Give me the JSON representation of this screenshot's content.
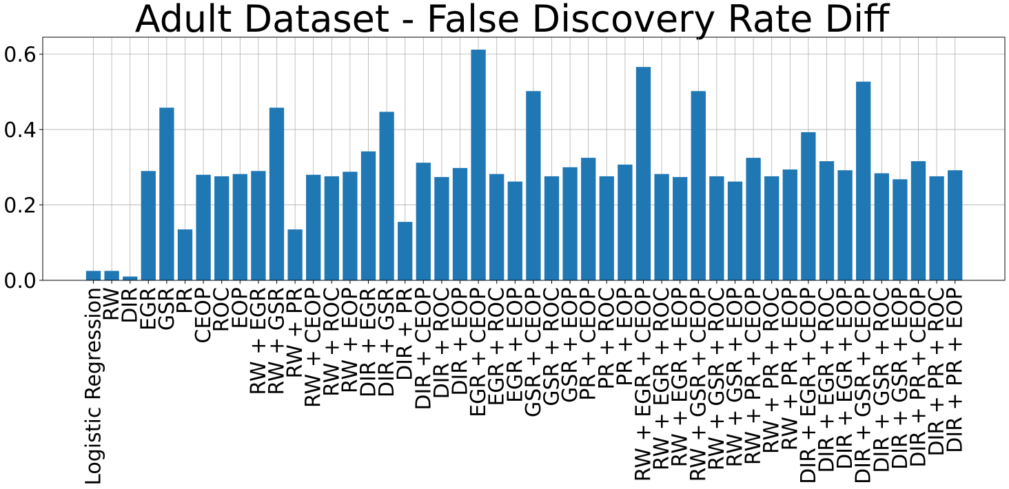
{
  "chart_data": {
    "type": "bar",
    "title": "Adult Dataset - False Discovery Rate Diff",
    "xlabel": "",
    "ylabel": "",
    "ylim": [
      0,
      0.645
    ],
    "yticks": [
      0.0,
      0.2,
      0.4,
      0.6
    ],
    "ytick_labels": [
      "0.0",
      "0.2",
      "0.4",
      "0.6"
    ],
    "grid": true,
    "bar_color": "#1f77b4",
    "categories": [
      "Logistic Regression",
      "RW",
      "DIR",
      "EGR",
      "GSR",
      "PR",
      "CEOP",
      "ROC",
      "EOP",
      "RW + EGR",
      "RW + GSR",
      "RW + PR",
      "RW + CEOP",
      "RW + ROC",
      "RW + EOP",
      "DIR + EGR",
      "DIR + GSR",
      "DIR + PR",
      "DIR + CEOP",
      "DIR + ROC",
      "DIR + EOP",
      "EGR + CEOP",
      "EGR + ROC",
      "EGR + EOP",
      "GSR + CEOP",
      "GSR + ROC",
      "GSR + EOP",
      "PR + CEOP",
      "PR + ROC",
      "PR + EOP",
      "RW + EGR + CEOP",
      "RW + EGR + ROC",
      "RW + EGR + EOP",
      "RW + GSR + CEOP",
      "RW + GSR + ROC",
      "RW + GSR + EOP",
      "RW + PR + CEOP",
      "RW + PR + ROC",
      "RW + PR + EOP",
      "DIR + EGR + CEOP",
      "DIR + EGR + ROC",
      "DIR + EGR + EOP",
      "DIR + GSR + CEOP",
      "DIR + GSR + ROC",
      "DIR + GSR + EOP",
      "DIR + PR + CEOP",
      "DIR + PR + ROC",
      "DIR + PR + EOP"
    ],
    "values": [
      0.025,
      0.025,
      0.01,
      0.29,
      0.458,
      0.135,
      0.28,
      0.276,
      0.282,
      0.29,
      0.458,
      0.135,
      0.28,
      0.276,
      0.288,
      0.342,
      0.447,
      0.155,
      0.312,
      0.274,
      0.298,
      0.612,
      0.282,
      0.262,
      0.502,
      0.276,
      0.3,
      0.325,
      0.276,
      0.307,
      0.566,
      0.282,
      0.274,
      0.502,
      0.276,
      0.262,
      0.325,
      0.276,
      0.294,
      0.393,
      0.316,
      0.292,
      0.527,
      0.284,
      0.268,
      0.316,
      0.276,
      0.292
    ]
  }
}
